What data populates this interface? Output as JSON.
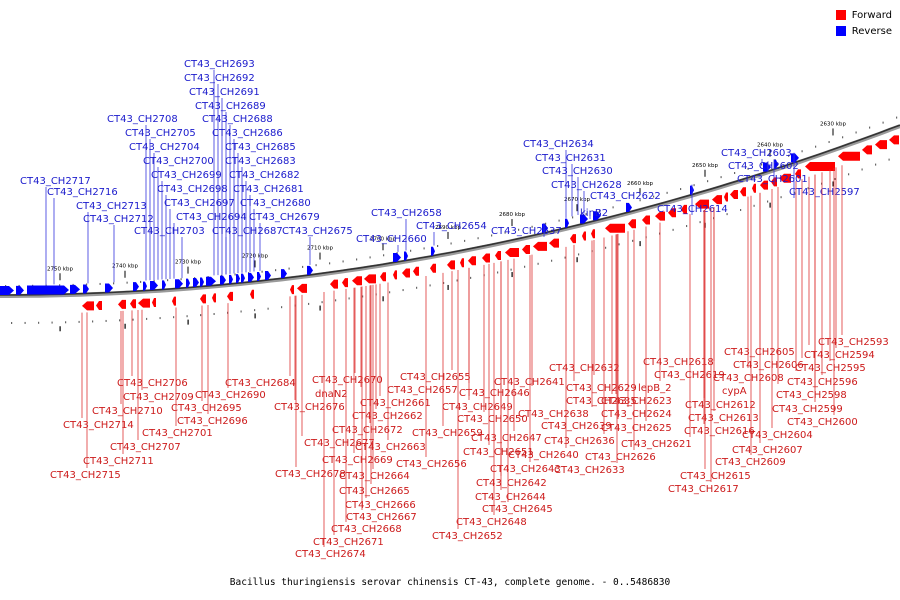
{
  "legend": {
    "forward_label": "Forward",
    "reverse_label": "Reverse",
    "forward_color": "#ff0000",
    "reverse_color": "#0000ff"
  },
  "caption": "Bacillus thuringiensis serovar chinensis CT-43, complete genome. - 0..5486830",
  "scale_labels": [
    "2750 kbp",
    "2740 kbp",
    "2730 kbp",
    "2720 kbp",
    "2710 kbp",
    "2700 kbp",
    "2690 kbp",
    "2680 kbp",
    "2670 kbp",
    "2660 kbp",
    "2650 kbp",
    "2640 kbp",
    "2630 kbp"
  ],
  "reverse_labels": [
    "CT43_CH2693",
    "CT43_CH2692",
    "CT43_CH2691",
    "CT43_CH2689",
    "CT43_CH2708",
    "CT43_CH2688",
    "CT43_CH2705",
    "CT43_CH2686",
    "CT43_CH2704",
    "CT43_CH2685",
    "CT43_CH2700",
    "CT43_CH2683",
    "CT43_CH2717",
    "CT43_CH2699",
    "CT43_CH2682",
    "CT43_CH2716",
    "CT43_CH2698",
    "CT43_CH2681",
    "CT43_CH2713",
    "CT43_CH2697",
    "CT43_CH2680",
    "CT43_CH2712",
    "CT43_CH2694",
    "CT43_CH2679",
    "CT43_CH2703",
    "CT43_CH2687",
    "CT43_CH2675",
    "CT43_CH2658",
    "CT43_CH2660",
    "CT43_CH2654",
    "CT43_CH2634",
    "CT43_CH2631",
    "CT43_CH2630",
    "CT43_CH2628",
    "CT43_CH2637",
    "kinB2",
    "CT43_CH2622",
    "CT43_CH2614",
    "CT43_CH2603",
    "CT43_CH2602",
    "CT43_CH2601",
    "CT43_CH2597"
  ],
  "forward_labels": [
    "CT43_CH2593",
    "CT43_CH2594",
    "CT43_CH2605",
    "CT43_CH2595",
    "CT43_CH2606",
    "CT43_CH2618",
    "CT43_CH2596",
    "CT43_CH2608",
    "CT43_CH2619",
    "CT43_CH2632",
    "CT43_CH2598",
    "CT43_CH2670",
    "CT43_CH2655",
    "CT43_CH2641",
    "CT43_CH2629",
    "lepB_2",
    "cypA",
    "CT43_CH2684",
    "CT43_CH2706",
    "dnaN2",
    "CT43_CH2657",
    "CT43_CH2646",
    "CT43_CH2612",
    "CT43_CH2599",
    "CT43_CH2690",
    "CT43_CH2709",
    "CT43_CH2661",
    "CT43_CH2635",
    "CT43_CH2623",
    "CT43_CH2676",
    "CT43_CH2695",
    "CT43_CH2649",
    "CT43_CH2613",
    "CT43_CH2600",
    "CT43_CH2710",
    "CT43_CH2662",
    "CT43_CH2638",
    "CT43_CH2624",
    "CT43_CH2696",
    "CT43_CH2650",
    "CT43_CH2714",
    "CT43_CH2672",
    "CT43_CH2639",
    "CT43_CH2625",
    "CT43_CH2616",
    "CT43_CH2604",
    "CT43_CH2701",
    "CT43_CH2659",
    "CT43_CH2647",
    "CT43_CH2677",
    "CT43_CH2663",
    "CT43_CH2636",
    "CT43_CH2621",
    "CT43_CH2707",
    "CT43_CH2651",
    "CT43_CH2640",
    "CT43_CH2607",
    "CT43_CH2669",
    "CT43_CH2626",
    "CT43_CH2711",
    "CT43_CH2656",
    "CT43_CH2643",
    "CT43_CH2633",
    "CT43_CH2609",
    "CT43_CH2678",
    "CT43_CH2664",
    "CT43_CH2715",
    "CT43_CH2615",
    "CT43_CH2642",
    "CT43_CH2665",
    "CT43_CH2617",
    "CT43_CH2644",
    "CT43_CH2666",
    "CT43_CH2645",
    "CT43_CH2667",
    "CT43_CH2648",
    "CT43_CH2668",
    "CT43_CH2652",
    "CT43_CH2671",
    "CT43_CH2674"
  ]
}
